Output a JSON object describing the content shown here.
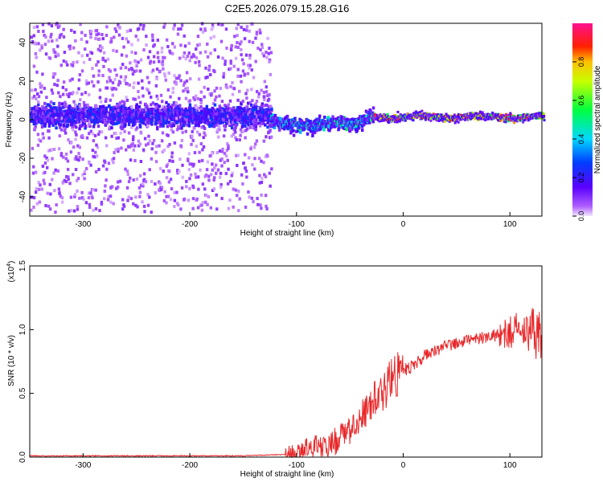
{
  "title": "C2E5.2026.079.15.28.G16",
  "chart_data": [
    {
      "type": "heatmap",
      "xlabel": "Height of straight line (km)",
      "ylabel": "Frequency (Hz)",
      "xlim": [
        -350,
        130
      ],
      "ylim": [
        -50,
        50
      ],
      "xticks": [
        -300,
        -200,
        -100,
        0,
        100
      ],
      "yticks": [
        -40,
        -20,
        0,
        20,
        40
      ],
      "colorbar": {
        "label": "Normalized spectral amplitude",
        "ticks": [
          "0.0",
          "0.2",
          "0.4",
          "0.6",
          "0.8"
        ],
        "range": [
          0,
          1
        ],
        "colormap": "rainbow (purple-blue-cyan-green-yellow-red-magenta)"
      },
      "regions": [
        {
          "x_range": [
            -350,
            -125
          ],
          "center_hz": 2,
          "core_width_hz": 10,
          "scatter_hz": 50,
          "amplitude": 0.15
        },
        {
          "x_range": [
            -125,
            -30
          ],
          "center_hz": 0,
          "core_width_hz": 5,
          "scatter_hz": 8,
          "amplitude": 0.45
        },
        {
          "x_range": [
            -30,
            130
          ],
          "center_hz": 1,
          "core_width_hz": 3,
          "scatter_hz": 4,
          "amplitude": 0.75
        }
      ]
    },
    {
      "type": "line",
      "xlabel": "Height of straight line (km)",
      "ylabel": "SNR (10 * v/v)",
      "multiplier": "(x10",
      "multiplier_exp": "4",
      "multiplier_close": ")",
      "xlim": [
        -350,
        130
      ],
      "ylim": [
        0,
        1.5
      ],
      "xticks": [
        -300,
        -200,
        -100,
        0,
        100
      ],
      "yticks": [
        "0.0",
        "0.5",
        "1.0",
        "1.5"
      ],
      "series": [
        {
          "color": "#e8282a",
          "x": [
            -350,
            -300,
            -250,
            -200,
            -150,
            -110,
            -100,
            -90,
            -80,
            -70,
            -60,
            -50,
            -40,
            -30,
            -20,
            -10,
            0,
            10,
            20,
            30,
            40,
            50,
            60,
            70,
            80,
            90,
            100,
            110,
            120,
            130
          ],
          "y": [
            0.01,
            0.01,
            0.01,
            0.01,
            0.01,
            0.02,
            0.04,
            0.07,
            0.09,
            0.1,
            0.14,
            0.2,
            0.3,
            0.42,
            0.5,
            0.62,
            0.68,
            0.72,
            0.8,
            0.84,
            0.87,
            0.9,
            0.92,
            0.93,
            0.95,
            0.96,
            0.98,
            1.0,
            1.0,
            0.92
          ]
        }
      ]
    }
  ]
}
